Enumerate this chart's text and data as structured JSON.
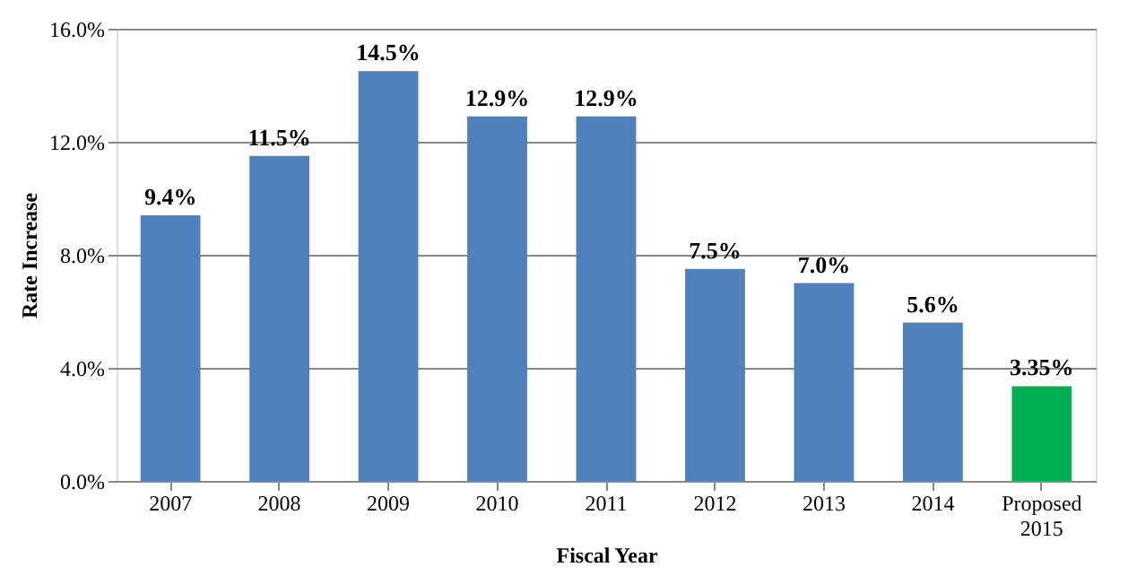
{
  "chart_data": {
    "type": "bar",
    "xlabel": "Fiscal Year",
    "ylabel": "Rate Increase",
    "categories": [
      "2007",
      "2008",
      "2009",
      "2010",
      "2011",
      "2012",
      "2013",
      "2014",
      "Proposed 2015"
    ],
    "values": [
      9.4,
      11.5,
      14.5,
      12.9,
      12.9,
      7.5,
      7.0,
      5.6,
      3.35
    ],
    "colors": [
      "#4f81bd",
      "#4f81bd",
      "#4f81bd",
      "#4f81bd",
      "#4f81bd",
      "#4f81bd",
      "#4f81bd",
      "#4f81bd",
      "#00b050"
    ],
    "value_labels": [
      "9.4%",
      "11.5%",
      "14.5%",
      "12.9%",
      "12.9%",
      "7.5%",
      "7.0%",
      "5.6%",
      "3.35%"
    ],
    "ylim": [
      0,
      16
    ],
    "yticks": [
      {
        "value": 0,
        "label": "0.0%"
      },
      {
        "value": 4,
        "label": "4.0%"
      },
      {
        "value": 8,
        "label": "8.0%"
      },
      {
        "value": 12,
        "label": "12.0%"
      },
      {
        "value": 16,
        "label": "16.0%"
      }
    ],
    "grid": "y"
  }
}
